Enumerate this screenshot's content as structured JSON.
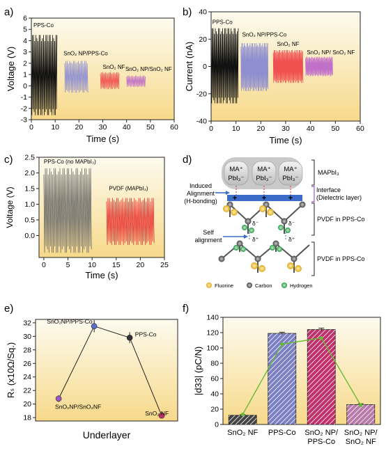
{
  "chart_data": [
    {
      "panel": "a)",
      "type": "line",
      "xlabel": "Time (s)",
      "ylabel": "Voltage (V)",
      "xlim": [
        0,
        60
      ],
      "ylim": [
        -3,
        6
      ],
      "xticks": [
        "0",
        "10",
        "20",
        "30",
        "40",
        "50",
        "60"
      ],
      "yticks": [
        "-3",
        "-2",
        "-1",
        "0",
        "1",
        "2",
        "3",
        "4",
        "5",
        "6"
      ],
      "series": [
        {
          "name": "PPS-Co",
          "x": [
            0,
            11
          ],
          "max": 4.5,
          "min": -2.6,
          "color": "#111111"
        },
        {
          "name": "SnO₂ NP/PPS-Co",
          "x": [
            14,
            24
          ],
          "max": 2.2,
          "min": -0.6,
          "color": "#8f8fd0"
        },
        {
          "name": "SnO₂ NF",
          "x": [
            29,
            37
          ],
          "max": 1.2,
          "min": -0.3,
          "color": "#f05050"
        },
        {
          "name": "SnO₂ NP/SnO₂ NF",
          "x": [
            40,
            48
          ],
          "max": 0.9,
          "min": -0.1,
          "color": "#c070c8"
        }
      ]
    },
    {
      "panel": "b)",
      "type": "line",
      "xlabel": "Time (s)",
      "ylabel": "Current (nA)",
      "xlim": [
        0,
        60
      ],
      "ylim": [
        -40,
        40
      ],
      "xticks": [
        "0",
        "10",
        "20",
        "30",
        "40",
        "50",
        "60"
      ],
      "yticks": [
        "-40",
        "-20",
        "0",
        "20",
        "40"
      ],
      "series": [
        {
          "name": "PPS-Co",
          "x": [
            0,
            11
          ],
          "max": 28,
          "min": -27,
          "color": "#111111"
        },
        {
          "name": "SnO₂ NP/PPS-Co",
          "x": [
            12,
            23
          ],
          "max": 17,
          "min": -18,
          "color": "#8f8fd0"
        },
        {
          "name": "SnO₂ NF",
          "x": [
            25,
            37
          ],
          "max": 12,
          "min": -12,
          "color": "#f05050"
        },
        {
          "name": "SnO₂ NP/ SnO₂ NF",
          "x": [
            38,
            49
          ],
          "max": 7,
          "min": -7,
          "color": "#c070c8"
        }
      ]
    },
    {
      "panel": "c)",
      "type": "line",
      "xlabel": "Time (s)",
      "ylabel": "Voltage (V)",
      "xlim": [
        -1,
        25
      ],
      "ylim": [
        -0.7,
        2.5
      ],
      "xticks": [
        "0",
        "5",
        "10",
        "15",
        "20",
        "25"
      ],
      "yticks": [
        "0.0",
        "0.5",
        "1.0",
        "1.5",
        "2.0",
        "2.5"
      ],
      "series": [
        {
          "name": "PPS-Co (no MAPbI₃)",
          "x": [
            0,
            10
          ],
          "max": 2.15,
          "min": -0.55,
          "color": "#666666"
        },
        {
          "name": "PVDF (MAPbI₃)",
          "x": [
            13,
            23
          ],
          "max": 1.2,
          "min": -0.3,
          "color": "#e83030"
        }
      ]
    },
    {
      "panel": "e)",
      "type": "line",
      "xlabel": "Underlayer",
      "ylabel": "Rₛ (x10Ω/Sq.)",
      "ylim": [
        17.5,
        32.5
      ],
      "yticks": [
        "18",
        "20",
        "22",
        "24",
        "26",
        "28",
        "30",
        "32"
      ],
      "categories": [
        "SnO₂NP/SnO₂NF",
        "SnO₂NP/PPS-Co",
        "PPS-Co",
        "SnO₂ NF"
      ],
      "values": [
        20.8,
        31.5,
        29.8,
        18.3
      ],
      "errors": [
        0.5,
        0.9,
        0.8,
        0.4
      ],
      "point_colors": [
        "#9b59c0",
        "#5b6fc8",
        "#333333",
        "#c0306a"
      ]
    },
    {
      "panel": "f)",
      "type": "bar",
      "xlabel": "",
      "ylabel": "|d33| (pC/N)",
      "ylim": [
        0,
        140
      ],
      "yticks": [
        "0",
        "20",
        "40",
        "60",
        "80",
        "100",
        "120",
        "140"
      ],
      "categories": [
        "SnO₂ NF",
        "PPS-Co",
        "SnO₂ NP/\nPPS-Co",
        "SnO₂ NP/\nSnO₂ NF"
      ],
      "values": [
        12,
        119,
        124,
        26
      ],
      "errors": [
        0.8,
        1.5,
        1.8,
        1.0
      ],
      "line_values": [
        13,
        105,
        113,
        25
      ],
      "bar_colors": [
        "#444444",
        "#7b7fc4",
        "#c0306a",
        "#b87aa8"
      ],
      "line_color": "#66bb33"
    }
  ],
  "diagram": {
    "panel": "d)",
    "cells": [
      {
        "top": "MA⁺",
        "bottom": "PbI₃⁻"
      },
      {
        "top": "MA⁺",
        "bottom": "PbI₃⁻"
      },
      {
        "top": "MA⁺",
        "bottom": "PbI₃⁻"
      }
    ],
    "bracket_mapbi": "MAPbI₃",
    "interface": "Interface",
    "interface_sub": "(Dielectric layer)",
    "induced_1": "Induced",
    "induced_2": "Alignment",
    "induced_3": "(H-bonding)",
    "pvdf_1": "PVDF in PPS-Co",
    "pvdf_2": "PVDF in PPS-Co",
    "self_1": "Self",
    "self_2": "alignment",
    "delta_minus": "δ⁻",
    "delta_plus": "δ⁺",
    "plus": "+",
    "legend": [
      "Fluorine",
      "Carbon",
      "Hydrogen"
    ],
    "legend_colors": [
      "#f5c842",
      "#666666",
      "#44bb66"
    ]
  }
}
